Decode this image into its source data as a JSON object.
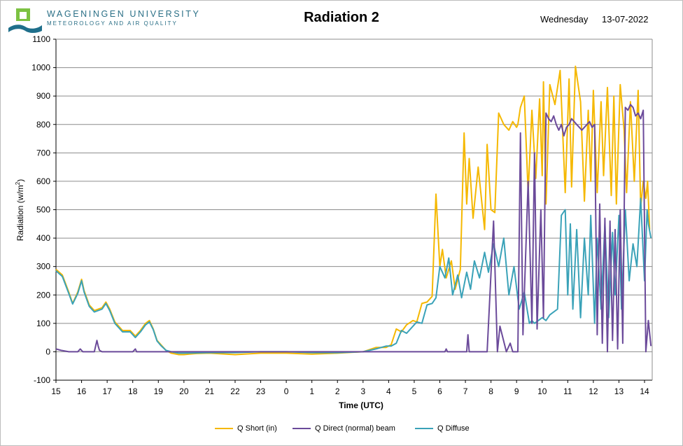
{
  "header": {
    "university": "WAGENINGEN UNIVERSITY",
    "department": "METEOROLOGY AND AIR QUALITY",
    "weekday": "Wednesday",
    "date": "13-07-2022"
  },
  "colors": {
    "short": "#f5b800",
    "direct": "#6b4a9a",
    "diffuse": "#3aa2b8",
    "grid": "#8c8c8c",
    "logo_green": "#7cc242",
    "logo_blue": "#1f6f8b"
  },
  "chart_data": {
    "type": "line",
    "title": "Radiation 2",
    "xlabel": "Time (UTC)",
    "ylabel": "Radiation (w/m2)",
    "ylabel_main": "Radiation (w/m",
    "ylabel_sup": "2",
    "ylabel_end": ")",
    "ylim": [
      -100,
      1100
    ],
    "yticks": [
      -100,
      0,
      100,
      200,
      300,
      400,
      500,
      600,
      700,
      800,
      900,
      1000,
      1100
    ],
    "xlim": [
      0,
      23.3
    ],
    "xtick_labels": [
      "15",
      "16",
      "17",
      "18",
      "19",
      "20",
      "21",
      "22",
      "23",
      "0",
      "1",
      "2",
      "3",
      "4",
      "5",
      "6",
      "7",
      "8",
      "9",
      "10",
      "11",
      "12",
      "13",
      "14"
    ],
    "grid": "horizontal",
    "legend_position": "bottom",
    "series": [
      {
        "name": "Q Short (in)",
        "x": [
          0,
          0.25,
          0.5,
          0.65,
          0.85,
          1.0,
          1.1,
          1.3,
          1.5,
          1.8,
          1.95,
          2.1,
          2.3,
          2.6,
          2.9,
          3.1,
          3.3,
          3.5,
          3.65,
          3.8,
          3.95,
          4.1,
          4.3,
          4.5,
          4.8,
          5.0,
          5.2,
          5.5,
          6.0,
          7.0,
          8.0,
          8.5,
          9.0,
          10.0,
          11.0,
          12.0,
          12.5,
          12.9,
          13.1,
          13.3,
          13.5,
          13.7,
          13.95,
          14.1,
          14.3,
          14.5,
          14.7,
          14.85,
          15.0,
          15.1,
          15.25,
          15.45,
          15.6,
          15.8,
          15.95,
          16.05,
          16.15,
          16.3,
          16.5,
          16.75,
          16.85,
          17.0,
          17.15,
          17.3,
          17.5,
          17.7,
          17.85,
          18.0,
          18.05,
          18.15,
          18.3,
          18.45,
          18.6,
          18.75,
          18.9,
          19.0,
          19.05,
          19.15,
          19.3,
          19.5,
          19.7,
          19.9,
          20.05,
          20.15,
          20.3,
          20.5,
          20.65,
          20.8,
          20.9,
          21.0,
          21.15,
          21.3,
          21.4,
          21.55,
          21.7,
          21.8,
          21.9,
          22.05,
          22.2,
          22.3,
          22.45,
          22.6,
          22.75,
          22.85,
          22.95,
          23.05,
          23.12,
          23.2
        ],
        "values": [
          290,
          270,
          210,
          170,
          210,
          255,
          215,
          165,
          145,
          155,
          175,
          150,
          105,
          75,
          75,
          55,
          75,
          100,
          110,
          80,
          40,
          25,
          5,
          -5,
          -10,
          -10,
          -8,
          -6,
          -5,
          -10,
          -5,
          -5,
          -5,
          -8,
          -5,
          0,
          15,
          15,
          25,
          80,
          70,
          95,
          110,
          105,
          170,
          175,
          195,
          555,
          300,
          360,
          260,
          320,
          220,
          290,
          770,
          520,
          680,
          470,
          650,
          430,
          730,
          500,
          490,
          840,
          800,
          780,
          810,
          790,
          800,
          860,
          900,
          560,
          850,
          610,
          890,
          620,
          950,
          520,
          940,
          870,
          990,
          560,
          960,
          580,
          1005,
          880,
          530,
          850,
          600,
          920,
          560,
          880,
          620,
          930,
          550,
          900,
          520,
          940,
          780,
          560,
          880,
          600,
          920,
          510,
          600,
          540,
          600,
          430
        ],
        "endx": 23.2
      },
      {
        "name": "Q Direct (normal) beam",
        "x": [
          0,
          0.2,
          0.5,
          0.85,
          0.95,
          1.05,
          1.5,
          1.6,
          1.65,
          1.7,
          1.8,
          2.0,
          2.5,
          3.0,
          3.1,
          3.15,
          3.2,
          3.4,
          3.9,
          4.0,
          5.0,
          6.0,
          7.0,
          8.0,
          9.0,
          12.0,
          13.0,
          14.0,
          14.9,
          15.2,
          15.25,
          15.3,
          15.4,
          16.05,
          16.1,
          16.15,
          16.5,
          16.85,
          17.1,
          17.25,
          17.35,
          17.6,
          17.75,
          17.85,
          17.95,
          18.05,
          18.15,
          18.25,
          18.45,
          18.6,
          18.7,
          18.8,
          18.95,
          19.05,
          19.15,
          19.25,
          19.35,
          19.45,
          19.55,
          19.65,
          19.75,
          19.85,
          19.95,
          20.05,
          20.15,
          20.25,
          20.35,
          20.45,
          20.55,
          20.65,
          20.75,
          20.85,
          20.95,
          21.05,
          21.15,
          21.25,
          21.35,
          21.45,
          21.55,
          21.65,
          21.75,
          21.85,
          21.95,
          22.05,
          22.15,
          22.25,
          22.35,
          22.45,
          22.55,
          22.65,
          22.75,
          22.85,
          22.95,
          23.05,
          23.15,
          23.25
        ],
        "values": [
          10,
          5,
          0,
          0,
          10,
          0,
          0,
          40,
          20,
          5,
          0,
          0,
          0,
          0,
          10,
          0,
          0,
          0,
          0,
          0,
          0,
          0,
          0,
          0,
          0,
          0,
          0,
          0,
          0,
          0,
          10,
          0,
          0,
          0,
          60,
          0,
          0,
          0,
          460,
          0,
          90,
          0,
          30,
          0,
          0,
          0,
          770,
          60,
          600,
          100,
          700,
          80,
          500,
          120,
          840,
          820,
          810,
          830,
          800,
          780,
          800,
          760,
          790,
          800,
          820,
          810,
          800,
          790,
          780,
          790,
          800,
          810,
          790,
          800,
          60,
          520,
          30,
          470,
          0,
          460,
          40,
          430,
          10,
          500,
          30,
          860,
          850,
          870,
          860,
          830,
          840,
          820,
          850,
          0,
          110,
          20
        ],
        "endx": 23.25
      },
      {
        "name": "Q Diffuse",
        "x": [
          0,
          0.25,
          0.5,
          0.65,
          0.85,
          1.0,
          1.1,
          1.3,
          1.5,
          1.8,
          1.95,
          2.1,
          2.3,
          2.6,
          2.9,
          3.1,
          3.3,
          3.5,
          3.65,
          3.8,
          3.95,
          4.1,
          4.3,
          4.5,
          4.8,
          5.0,
          6.0,
          7.0,
          8.0,
          9.0,
          10.0,
          11.0,
          12.0,
          12.5,
          12.9,
          13.1,
          13.3,
          13.5,
          13.7,
          13.95,
          14.1,
          14.3,
          14.5,
          14.7,
          14.85,
          15.0,
          15.2,
          15.35,
          15.5,
          15.7,
          15.85,
          16.05,
          16.2,
          16.35,
          16.55,
          16.75,
          16.9,
          17.1,
          17.3,
          17.5,
          17.7,
          17.9,
          18.1,
          18.3,
          18.5,
          18.6,
          18.7,
          18.85,
          19.0,
          19.15,
          19.3,
          19.45,
          19.6,
          19.75,
          19.9,
          20.0,
          20.1,
          20.2,
          20.35,
          20.5,
          20.65,
          20.8,
          20.9,
          21.05,
          21.15,
          21.3,
          21.45,
          21.6,
          21.75,
          21.85,
          22.0,
          22.1,
          22.25,
          22.4,
          22.55,
          22.7,
          22.85,
          23.0,
          23.1,
          23.15,
          23.25
        ],
        "values": [
          285,
          265,
          205,
          168,
          205,
          250,
          210,
          160,
          140,
          150,
          170,
          145,
          100,
          70,
          70,
          50,
          70,
          95,
          105,
          78,
          38,
          22,
          5,
          0,
          -5,
          -5,
          -3,
          -3,
          0,
          0,
          -3,
          -3,
          0,
          10,
          20,
          20,
          30,
          75,
          65,
          90,
          105,
          100,
          165,
          170,
          190,
          300,
          260,
          330,
          200,
          270,
          190,
          280,
          220,
          320,
          260,
          350,
          280,
          380,
          300,
          400,
          200,
          300,
          150,
          210,
          100,
          110,
          100,
          110,
          120,
          110,
          130,
          140,
          150,
          480,
          500,
          200,
          450,
          150,
          430,
          120,
          400,
          200,
          480,
          100,
          400,
          150,
          450,
          120,
          420,
          200,
          480,
          150,
          500,
          250,
          380,
          300,
          540,
          250,
          500,
          450,
          400
        ],
        "endx": 23.25
      }
    ]
  }
}
